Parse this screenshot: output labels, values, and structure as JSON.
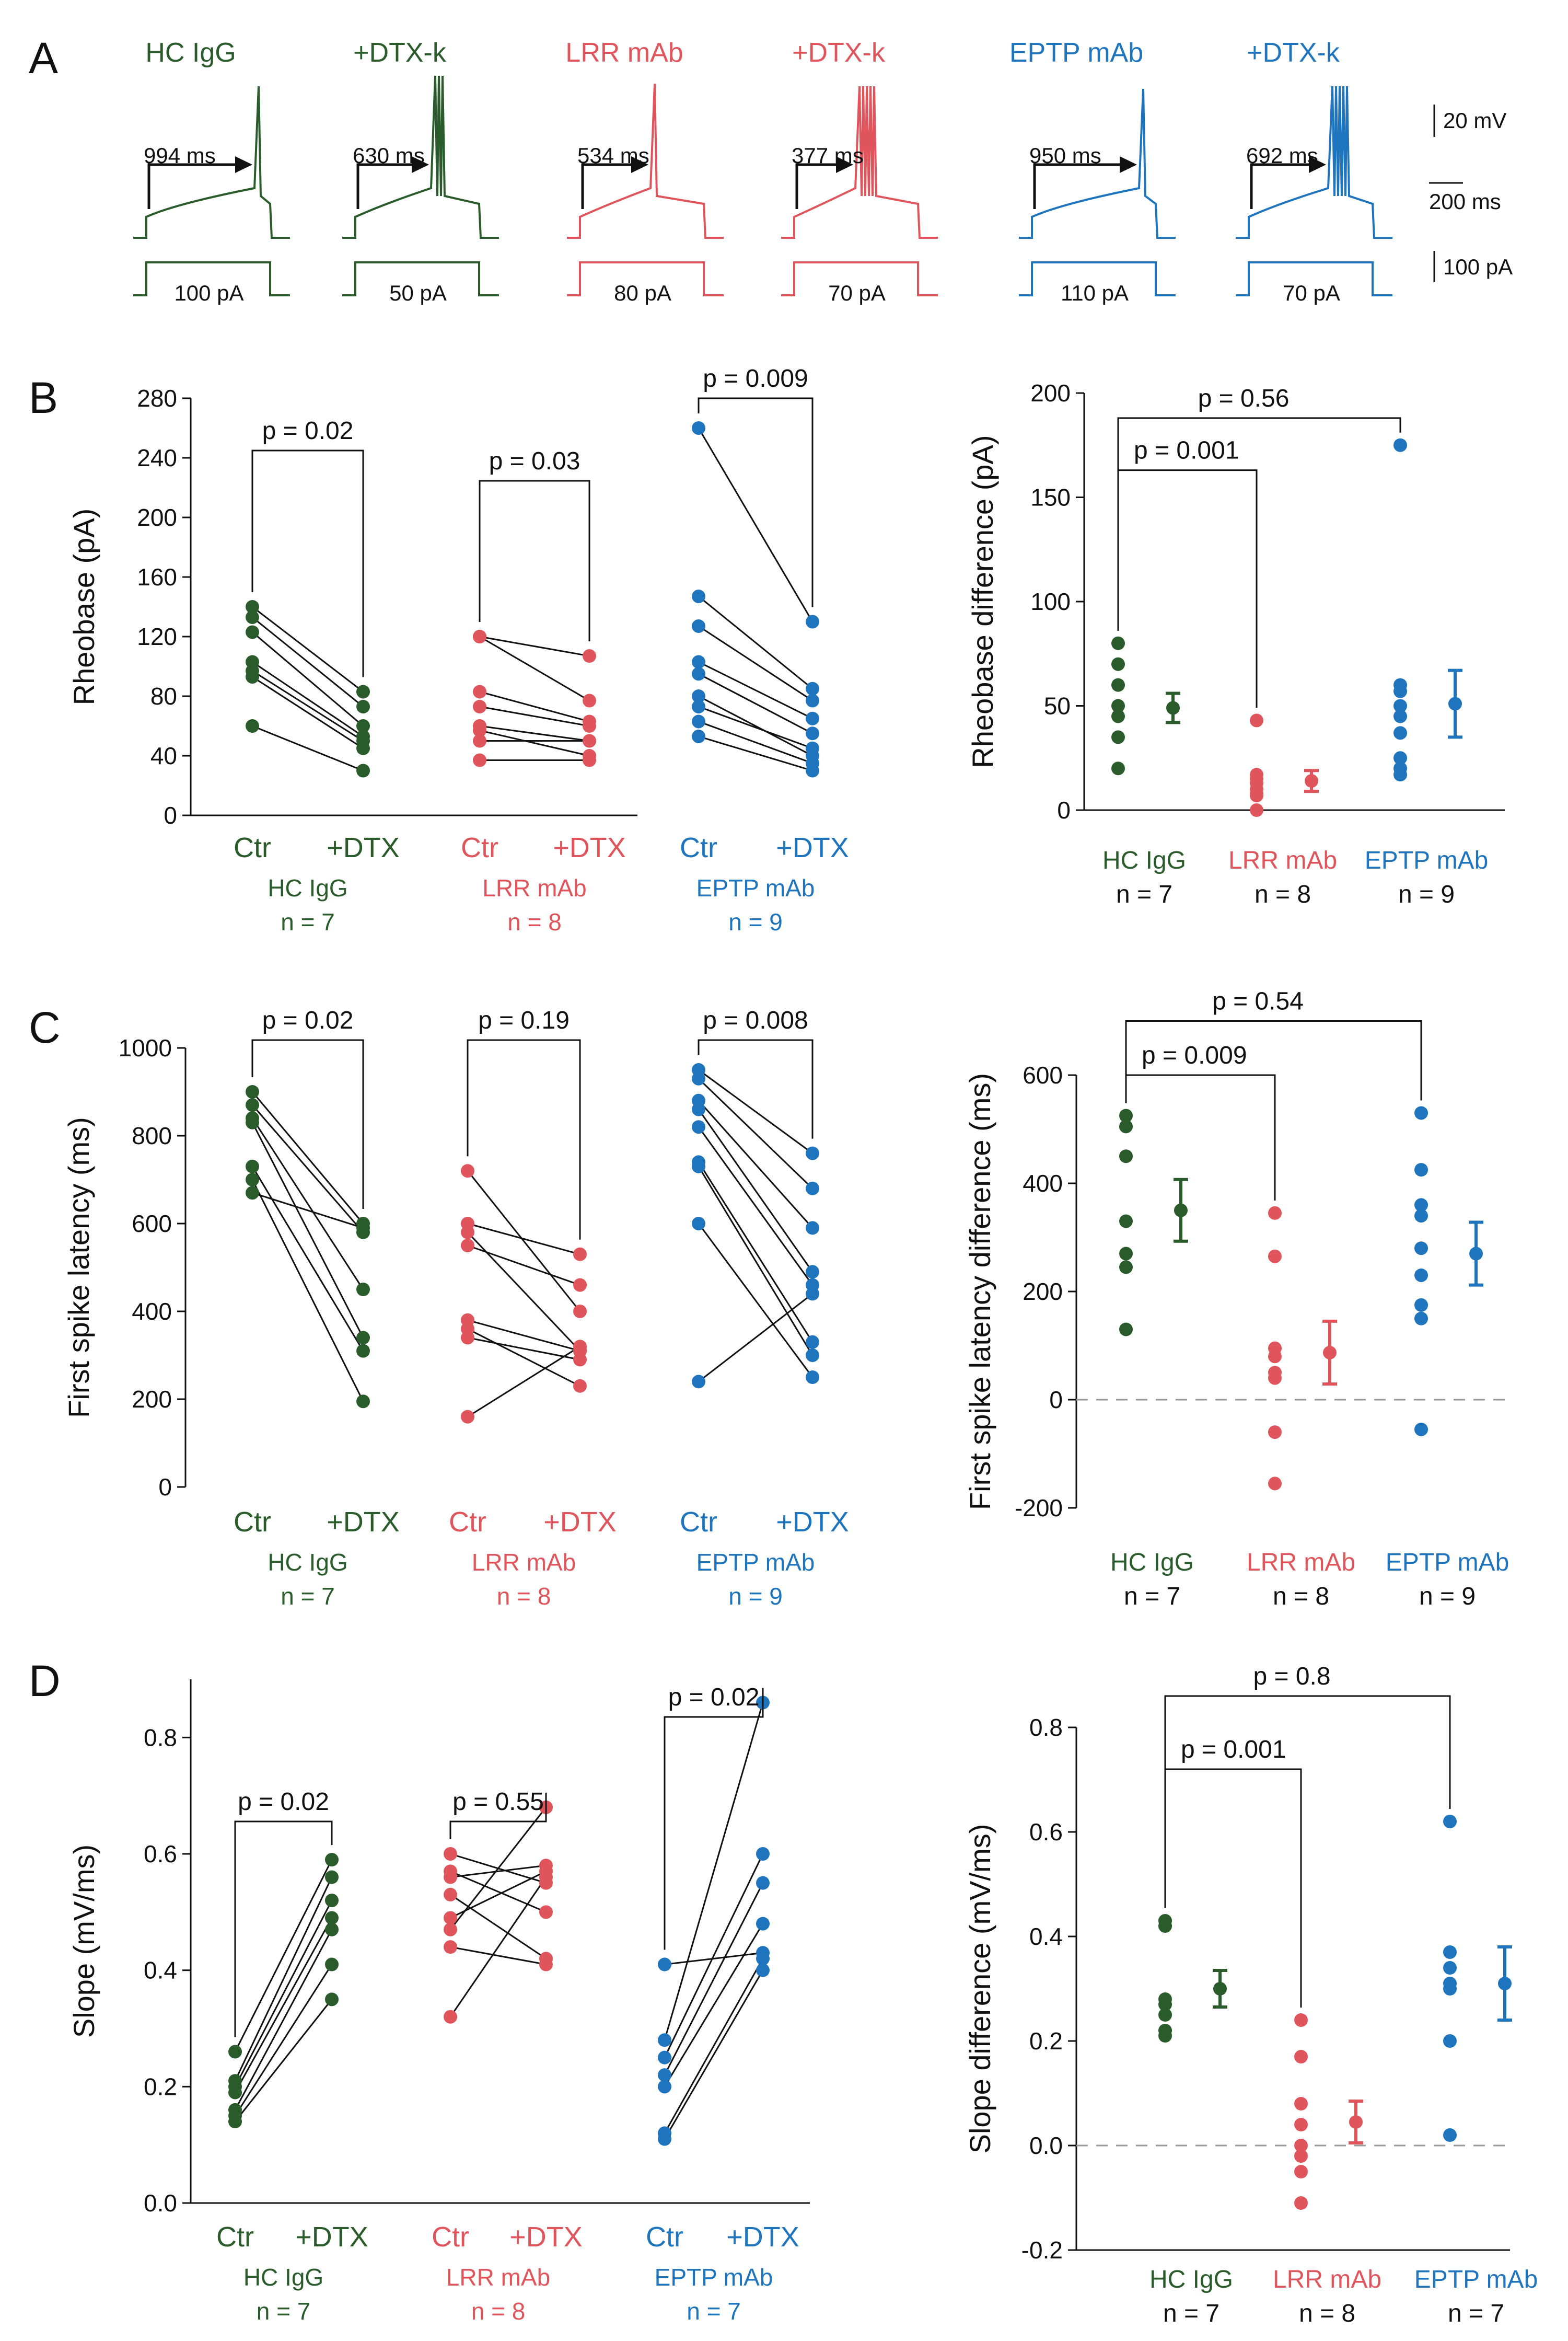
{
  "colors": {
    "hc": "#2a5b2b",
    "lrr": "#e0555c",
    "eptp": "#1e75bd",
    "black": "#111111",
    "dash": "#9a9a9a"
  },
  "panels": {
    "A": "A",
    "B": "B",
    "C": "C",
    "D": "D"
  },
  "panelA": {
    "traces": [
      {
        "name": "HC IgG",
        "color": "hc",
        "latency": "994 ms",
        "current": "100 pA"
      },
      {
        "name": "+DTX-k",
        "color": "hc",
        "latency": "630 ms",
        "current": "50 pA"
      },
      {
        "name": "LRR mAb",
        "color": "lrr",
        "latency": "534 ms",
        "current": "80 pA"
      },
      {
        "name": "+DTX-k",
        "color": "lrr",
        "latency": "377 ms",
        "current": "70 pA"
      },
      {
        "name": "EPTP mAb",
        "color": "eptp",
        "latency": "950 ms",
        "current": "110 pA"
      },
      {
        "name": "+DTX-k",
        "color": "eptp",
        "latency": "692 ms",
        "current": "70 pA"
      }
    ],
    "scalebars": {
      "voltage": "20 mV",
      "time": "200 ms",
      "current": "100 pA"
    }
  },
  "chart_data": [
    {
      "id": "B-left",
      "type": "scatter",
      "ylabel": "Rheobase (pA)",
      "ylim": [
        0,
        280
      ],
      "yticks": [
        0,
        40,
        80,
        120,
        160,
        200,
        240,
        280
      ],
      "groups": [
        {
          "name": "HC IgG",
          "n": "n = 7",
          "color": "hc",
          "x_labels": [
            "Ctr",
            "+DTX"
          ],
          "p": "p = 0.02",
          "pairs": [
            [
              140,
              83
            ],
            [
              133,
              73
            ],
            [
              123,
              60
            ],
            [
              103,
              53
            ],
            [
              97,
              50
            ],
            [
              93,
              45
            ],
            [
              60,
              30
            ]
          ]
        },
        {
          "name": "LRR mAb",
          "n": "n = 8",
          "color": "lrr",
          "x_labels": [
            "Ctr",
            "+DTX"
          ],
          "p": "p = 0.03",
          "pairs": [
            [
              120,
              107
            ],
            [
              120,
              77
            ],
            [
              83,
              63
            ],
            [
              73,
              60
            ],
            [
              60,
              50
            ],
            [
              57,
              40
            ],
            [
              50,
              50
            ],
            [
              37,
              37
            ]
          ]
        },
        {
          "name": "EPTP mAb",
          "n": "n = 9",
          "color": "eptp",
          "x_labels": [
            "Ctr",
            "+DTX"
          ],
          "p": "p = 0.009",
          "pairs": [
            [
              260,
              130
            ],
            [
              147,
              85
            ],
            [
              127,
              77
            ],
            [
              103,
              65
            ],
            [
              95,
              55
            ],
            [
              80,
              40
            ],
            [
              73,
              45
            ],
            [
              63,
              35
            ],
            [
              53,
              30
            ]
          ]
        }
      ]
    },
    {
      "id": "B-right",
      "type": "scatter",
      "ylabel": "Rheobase difference (pA)",
      "ylim": [
        0,
        200
      ],
      "yticks": [
        0,
        50,
        100,
        150,
        200
      ],
      "groups": [
        {
          "name": "HC IgG",
          "n": "n = 7",
          "color": "hc",
          "points": [
            80,
            70,
            60,
            50,
            45,
            35,
            20
          ],
          "mean": 49,
          "sem": 7
        },
        {
          "name": "LRR mAb",
          "n": "n = 8",
          "color": "lrr",
          "points": [
            43,
            17,
            15,
            13,
            10,
            8,
            7,
            0
          ],
          "mean": 14,
          "sem": 5
        },
        {
          "name": "EPTP mAb",
          "n": "n = 9",
          "color": "eptp",
          "points": [
            175,
            60,
            57,
            50,
            45,
            37,
            25,
            20,
            17
          ],
          "mean": 51,
          "sem": 16
        }
      ],
      "brackets": [
        {
          "label": "p = 0.001",
          "from": 0,
          "to": 1,
          "y": 163
        },
        {
          "label": "p = 0.56",
          "from": 0,
          "to": 2,
          "y": 188
        }
      ]
    },
    {
      "id": "C-left",
      "type": "scatter",
      "ylabel": "First spike latency (ms)",
      "ylim": [
        0,
        1000
      ],
      "yticks": [
        0,
        200,
        400,
        600,
        800,
        1000
      ],
      "groups": [
        {
          "name": "HC IgG",
          "n": "n = 7",
          "color": "hc",
          "x_labels": [
            "Ctr",
            "+DTX"
          ],
          "p": "p = 0.02",
          "pairs": [
            [
              900,
              600
            ],
            [
              870,
              580
            ],
            [
              840,
              450
            ],
            [
              830,
              340
            ],
            [
              730,
              310
            ],
            [
              700,
              195
            ],
            [
              670,
              590
            ]
          ]
        },
        {
          "name": "LRR mAb",
          "n": "n = 8",
          "color": "lrr",
          "x_labels": [
            "Ctr",
            "+DTX"
          ],
          "p": "p = 0.19",
          "pairs": [
            [
              720,
              400
            ],
            [
              600,
              530
            ],
            [
              580,
              310
            ],
            [
              550,
              460
            ],
            [
              380,
              310
            ],
            [
              360,
              230
            ],
            [
              340,
              290
            ],
            [
              160,
              320
            ]
          ]
        },
        {
          "name": "EPTP mAb",
          "n": "n = 9",
          "color": "eptp",
          "x_labels": [
            "Ctr",
            "+DTX"
          ],
          "p": "p = 0.008",
          "pairs": [
            [
              950,
              760
            ],
            [
              930,
              680
            ],
            [
              880,
              590
            ],
            [
              860,
              490
            ],
            [
              820,
              460
            ],
            [
              740,
              330
            ],
            [
              730,
              300
            ],
            [
              600,
              250
            ],
            [
              240,
              440
            ]
          ]
        }
      ]
    },
    {
      "id": "C-right",
      "type": "scatter",
      "ylabel": "First spike latency difference (ms)",
      "ylim": [
        -200,
        600
      ],
      "yticks": [
        -200,
        0,
        200,
        400,
        600
      ],
      "groups": [
        {
          "name": "HC IgG",
          "n": "n = 7",
          "color": "hc",
          "points": [
            525,
            505,
            450,
            330,
            270,
            245,
            130
          ],
          "mean": 350,
          "sem": 57
        },
        {
          "name": "LRR mAb",
          "n": "n = 8",
          "color": "lrr",
          "points": [
            345,
            265,
            95,
            80,
            50,
            40,
            -60,
            -155
          ],
          "mean": 87,
          "sem": 58
        },
        {
          "name": "EPTP mAb",
          "n": "n = 9",
          "color": "eptp",
          "points": [
            530,
            425,
            360,
            340,
            280,
            230,
            175,
            150,
            -55
          ],
          "mean": 270,
          "sem": 58
        }
      ],
      "brackets": [
        {
          "label": "p = 0.009",
          "from": 0,
          "to": 1,
          "y": 600
        },
        {
          "label": "p = 0.54",
          "from": 0,
          "to": 2,
          "y": 700
        }
      ],
      "zero_line": true
    },
    {
      "id": "D-left",
      "type": "scatter",
      "ylabel": "Slope (mV/ms)",
      "ylim": [
        0,
        0.9
      ],
      "yticks": [
        0.0,
        0.2,
        0.4,
        0.6,
        0.8
      ],
      "groups": [
        {
          "name": "HC IgG",
          "n": "n = 7",
          "color": "hc",
          "x_labels": [
            "Ctr",
            "+DTX"
          ],
          "p": "p = 0.02",
          "pairs": [
            [
              0.26,
              0.59
            ],
            [
              0.21,
              0.56
            ],
            [
              0.2,
              0.52
            ],
            [
              0.19,
              0.49
            ],
            [
              0.16,
              0.47
            ],
            [
              0.15,
              0.41
            ],
            [
              0.14,
              0.35
            ]
          ]
        },
        {
          "name": "LRR mAb",
          "n": "n = 8",
          "color": "lrr",
          "x_labels": [
            "Ctr",
            "+DTX"
          ],
          "p": "p = 0.55",
          "pairs": [
            [
              0.6,
              0.55
            ],
            [
              0.57,
              0.5
            ],
            [
              0.56,
              0.58
            ],
            [
              0.53,
              0.42
            ],
            [
              0.49,
              0.57
            ],
            [
              0.47,
              0.68
            ],
            [
              0.44,
              0.41
            ],
            [
              0.32,
              0.56
            ]
          ]
        },
        {
          "name": "EPTP mAb",
          "n": "n = 7",
          "color": "eptp",
          "x_labels": [
            "Ctr",
            "+DTX"
          ],
          "p": "p = 0.02",
          "pairs": [
            [
              0.41,
              0.43
            ],
            [
              0.28,
              0.86
            ],
            [
              0.25,
              0.6
            ],
            [
              0.22,
              0.55
            ],
            [
              0.2,
              0.48
            ],
            [
              0.12,
              0.42
            ],
            [
              0.11,
              0.4
            ]
          ]
        }
      ]
    },
    {
      "id": "D-right",
      "type": "scatter",
      "ylabel": "Slope difference (mV/ms)",
      "ylim": [
        -0.2,
        0.8
      ],
      "yticks": [
        -0.2,
        0.0,
        0.2,
        0.4,
        0.6,
        0.8
      ],
      "groups": [
        {
          "name": "HC IgG",
          "n": "n = 7",
          "color": "hc",
          "points": [
            0.43,
            0.42,
            0.28,
            0.27,
            0.25,
            0.22,
            0.21
          ],
          "mean": 0.3,
          "sem": 0.035
        },
        {
          "name": "LRR mAb",
          "n": "n = 8",
          "color": "lrr",
          "points": [
            0.24,
            0.17,
            0.08,
            0.04,
            0.0,
            -0.02,
            -0.05,
            -0.11
          ],
          "mean": 0.045,
          "sem": 0.04
        },
        {
          "name": "EPTP mAb",
          "n": "n = 7",
          "color": "eptp",
          "points": [
            0.62,
            0.37,
            0.34,
            0.31,
            0.3,
            0.2,
            0.02
          ],
          "mean": 0.31,
          "sem": 0.07
        }
      ],
      "brackets": [
        {
          "label": "p = 0.001",
          "from": 0,
          "to": 1,
          "y": 0.72
        },
        {
          "label": "p = 0.8",
          "from": 0,
          "to": 2,
          "y": 0.86
        }
      ],
      "zero_line": true
    }
  ]
}
